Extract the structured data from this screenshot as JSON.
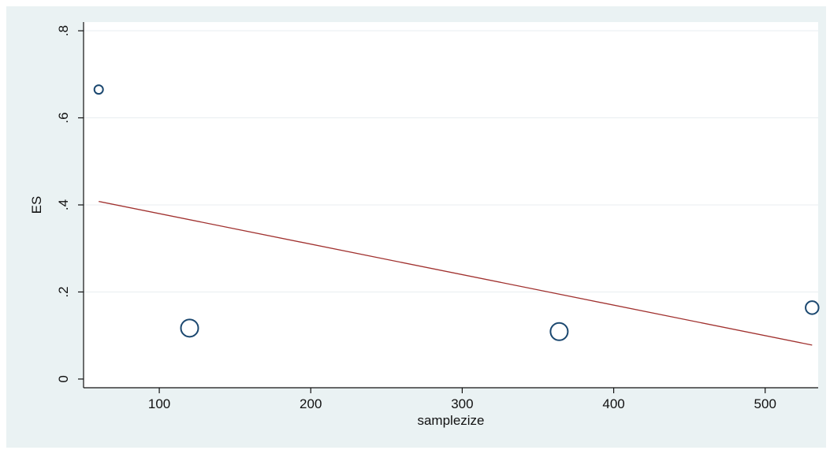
{
  "chart_data": {
    "type": "scatter",
    "title": "",
    "xlabel": "samplezize",
    "ylabel": "ES",
    "xlim": [
      50,
      535
    ],
    "ylim": [
      -0.02,
      0.82
    ],
    "x_ticks": [
      100,
      200,
      300,
      400,
      500
    ],
    "y_ticks": [
      0,
      0.2,
      0.4,
      0.6,
      0.8
    ],
    "x_tick_labels": [
      "100",
      "200",
      "300",
      "400",
      "500"
    ],
    "y_tick_labels": [
      "0",
      ".2",
      ".4",
      ".6",
      ".8"
    ],
    "grid": "horizontal",
    "points": [
      {
        "x": 60,
        "y": 0.665,
        "weight": 1
      },
      {
        "x": 120,
        "y": 0.117,
        "weight": 2
      },
      {
        "x": 364,
        "y": 0.109,
        "weight": 2
      },
      {
        "x": 531,
        "y": 0.164,
        "weight": 1.5
      }
    ],
    "fit_line": {
      "x": [
        60,
        531
      ],
      "y": [
        0.408,
        0.078
      ],
      "color": "#a0302e"
    },
    "colors": {
      "marker": "#1a476f",
      "fit": "#a0302e",
      "plot_background": "#ffffff",
      "outer_background": "#eaf2f3",
      "grid": "#e8eef0"
    }
  }
}
